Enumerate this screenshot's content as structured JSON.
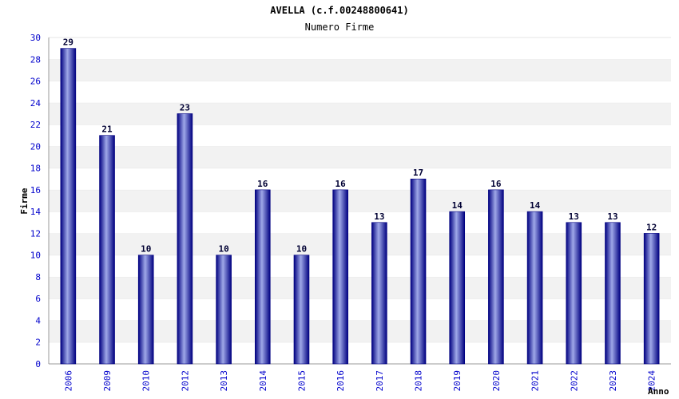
{
  "chart_data": {
    "type": "bar",
    "title": "AVELLA (c.f.00248800641)",
    "subtitle": "Numero Firme",
    "xlabel": "Anno",
    "ylabel": "Firme",
    "ylim": [
      0,
      30
    ],
    "yticks": [
      0,
      2,
      4,
      6,
      8,
      10,
      12,
      14,
      16,
      18,
      20,
      22,
      24,
      26,
      28,
      30
    ],
    "categories": [
      "2006",
      "2009",
      "2010",
      "2012",
      "2013",
      "2014",
      "2015",
      "2016",
      "2017",
      "2018",
      "2019",
      "2020",
      "2021",
      "2022",
      "2023",
      "2024"
    ],
    "values": [
      29,
      21,
      10,
      23,
      10,
      16,
      10,
      16,
      13,
      17,
      14,
      16,
      14,
      13,
      13,
      12
    ],
    "data_labels": true,
    "grid": "horizontal-bands",
    "legend": "none",
    "colors": {
      "bar_dark": "#000080",
      "bar_light": "#9fa8e8",
      "band": "#f2f2f2",
      "tick_text": "#0000cc"
    }
  }
}
